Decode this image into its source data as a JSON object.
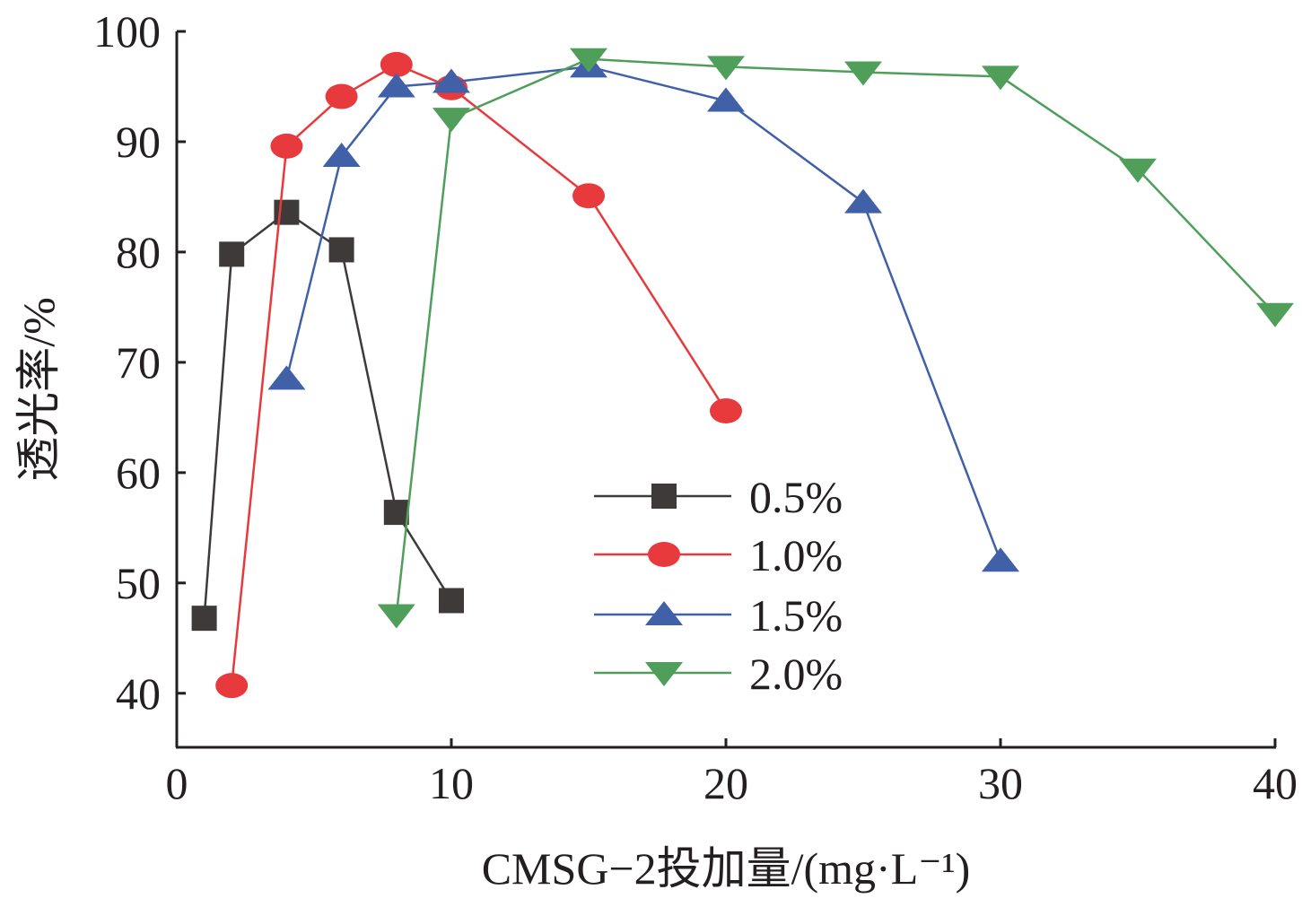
{
  "chart_data": {
    "type": "line",
    "title": "",
    "xlabel": "CMSG−2投加量/(mg·L⁻¹)",
    "ylabel": "透光率/%",
    "xlim": [
      0,
      40
    ],
    "ylim": [
      35.1,
      100
    ],
    "xticks": [
      "0",
      "10",
      "20",
      "30",
      "40"
    ],
    "yticks": [
      "40",
      "50",
      "60",
      "70",
      "80",
      "90",
      "100"
    ],
    "grid": false,
    "legend_position": "center-right-lower",
    "series": [
      {
        "name": "0.5%",
        "color": "#3f3a3a",
        "marker": "square",
        "x": [
          1,
          2,
          4,
          6,
          8,
          10
        ],
        "y": [
          46.8,
          79.8,
          83.6,
          80.2,
          56.4,
          48.4
        ]
      },
      {
        "name": "1.0%",
        "color": "#e8393d",
        "marker": "circle",
        "x": [
          2,
          4,
          6,
          8,
          10,
          15,
          20
        ],
        "y": [
          40.7,
          89.6,
          94.1,
          97.0,
          94.9,
          85.1,
          65.6
        ]
      },
      {
        "name": "1.5%",
        "color": "#4060a8",
        "marker": "triangle-up",
        "x": [
          4,
          6,
          8,
          10,
          15,
          20,
          25,
          30
        ],
        "y": [
          68.5,
          88.7,
          95.0,
          95.4,
          96.8,
          93.7,
          84.5,
          52.0
        ]
      },
      {
        "name": "2.0%",
        "color": "#4f9e5a",
        "marker": "triangle-down",
        "x": [
          8,
          10,
          15,
          20,
          25,
          30,
          35,
          40
        ],
        "y": [
          47.1,
          92.1,
          97.5,
          96.8,
          96.3,
          95.9,
          87.5,
          74.4
        ]
      }
    ]
  }
}
